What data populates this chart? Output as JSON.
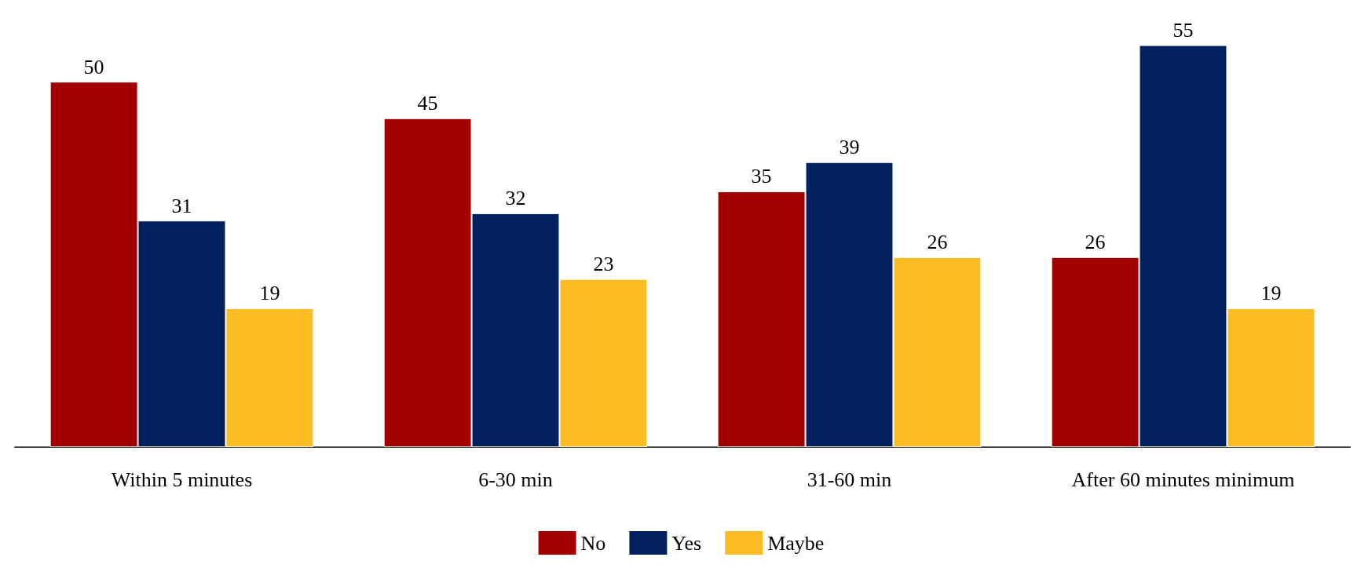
{
  "chart_data": {
    "type": "bar",
    "categories": [
      "Within 5 minutes",
      "6-30 min",
      "31-60 min",
      "After 60 minutes minimum"
    ],
    "series": [
      {
        "name": "No",
        "color": "#a20000",
        "values": [
          50,
          45,
          35,
          26
        ]
      },
      {
        "name": "Yes",
        "color": "#002060",
        "values": [
          31,
          32,
          39,
          55
        ]
      },
      {
        "name": "Maybe",
        "color": "#fbbc24",
        "values": [
          19,
          23,
          26,
          19
        ]
      }
    ],
    "data_labels": true,
    "grid": false,
    "legend": "bottom"
  }
}
